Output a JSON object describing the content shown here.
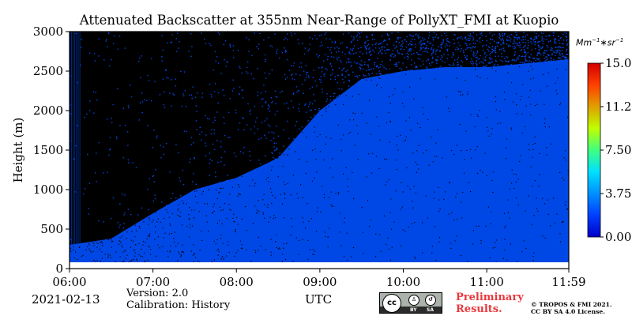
{
  "chart_data": {
    "type": "heatmap",
    "title": "Attenuated Backscatter at 355nm Near-Range of PollyXT_FMI at Kuopio",
    "ylabel": "Height (m)",
    "xlabel": "UTC",
    "y_ticks": [
      0,
      500,
      1000,
      1500,
      2000,
      2500,
      3000
    ],
    "y_tick_labels": [
      "0",
      "500",
      "1000",
      "1500",
      "2000",
      "2500",
      "3000"
    ],
    "ylim": [
      0,
      3000
    ],
    "x_ticks": [
      "06:00",
      "07:00",
      "08:00",
      "09:00",
      "10:00",
      "11:00",
      "11:59"
    ],
    "x_tick_hours": [
      6,
      7,
      8,
      9,
      10,
      11,
      11.9833
    ],
    "xlim_hours": [
      6,
      11.9833
    ],
    "colorbar": {
      "unit_base": "Mm",
      "unit_exp1": "−1",
      "unit_mid": "∗sr",
      "unit_exp2": "−1",
      "ticks": [
        0,
        3.75,
        7.5,
        11.25,
        15
      ],
      "tick_labels": [
        "0.00",
        "3.75",
        "7.50",
        "11.25",
        "15.00"
      ],
      "range": [
        0,
        15
      ],
      "colormap": "jet"
    },
    "fields": [
      {
        "name": "signal_top_height_m",
        "values_by_time": [
          {
            "hour": 6.0,
            "height": 300
          },
          {
            "hour": 6.5,
            "height": 380
          },
          {
            "hour": 7.0,
            "height": 700
          },
          {
            "hour": 7.5,
            "height": 1000
          },
          {
            "hour": 8.0,
            "height": 1150
          },
          {
            "hour": 8.5,
            "height": 1400
          },
          {
            "hour": 9.0,
            "height": 2000
          },
          {
            "hour": 9.5,
            "height": 2400
          },
          {
            "hour": 10.0,
            "height": 2500
          },
          {
            "hour": 10.5,
            "height": 2550
          },
          {
            "hour": 11.0,
            "height": 2550
          },
          {
            "hour": 11.5,
            "height": 2600
          },
          {
            "hour": 11.98,
            "height": 2650
          }
        ]
      },
      {
        "name": "near_range_gap_height_m",
        "value": 80
      }
    ],
    "colors": {
      "background_noise": "#000000",
      "low_signal": "#0048e6",
      "near_ground": "#ffffff"
    }
  },
  "footer": {
    "date": "2021-02-13",
    "version": "Version: 2.0",
    "calibration": "Calibration: History",
    "preliminary_1": "Preliminary",
    "preliminary_2": "Results.",
    "copyright_1": "© TROPOS & FMI 2021.",
    "copyright_2": "CC BY SA 4.0 License.",
    "license_badge": {
      "cc": "cc",
      "by": "BY",
      "sa": "SA"
    }
  }
}
